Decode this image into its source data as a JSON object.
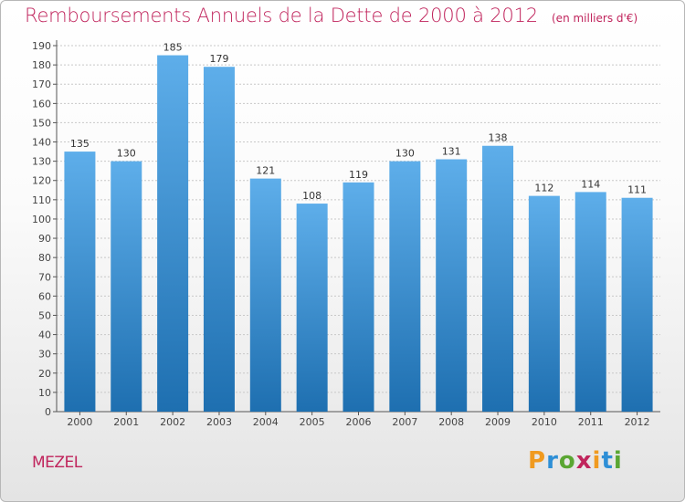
{
  "title": "Remboursements Annuels de la Dette de 2000 à 2012",
  "unit": "(en milliers d'€)",
  "commune": "MEZEL",
  "logo": {
    "letters": [
      "P",
      "r",
      "o",
      "x",
      "i",
      "t",
      "i"
    ],
    "colors": [
      "#f09a1f",
      "#2e8fd6",
      "#5aa632",
      "#c0245c",
      "#f09a1f",
      "#2e8fd6",
      "#5aa632"
    ]
  },
  "colors": {
    "bar_top": "#5eaeea",
    "bar_bottom": "#1e6fb0",
    "title": "#c0245c",
    "grid": "#c8c8c8"
  },
  "chart_data": {
    "type": "bar",
    "title": "Remboursements Annuels de la Dette de 2000 à 2012",
    "ylabel": "",
    "xlabel": "",
    "categories": [
      "2000",
      "2001",
      "2002",
      "2003",
      "2004",
      "2005",
      "2006",
      "2007",
      "2008",
      "2009",
      "2010",
      "2011",
      "2012"
    ],
    "values": [
      135,
      130,
      185,
      179,
      121,
      108,
      119,
      130,
      131,
      138,
      112,
      114,
      111
    ],
    "ylim": [
      0,
      190
    ],
    "ytick_step": 10,
    "grid": true,
    "legend": "none"
  }
}
